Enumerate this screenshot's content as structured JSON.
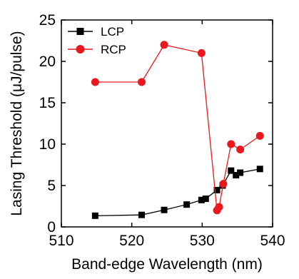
{
  "chart_data": {
    "type": "line",
    "xlabel": "Band-edge Wavelength (nm)",
    "ylabel": "Lasing Threshold (μJ/pulse)",
    "xlim": [
      510,
      540
    ],
    "ylim": [
      0,
      25
    ],
    "xticks": [
      510,
      520,
      530,
      540
    ],
    "yticks": [
      0,
      5,
      10,
      15,
      20,
      25
    ],
    "grid": false,
    "legend_position": "top-left",
    "series": [
      {
        "name": "LCP",
        "marker": "square",
        "color": "#000000",
        "x": [
          514.8,
          521.4,
          524.6,
          527.8,
          529.9,
          530.5,
          532.1,
          532.9,
          534.1,
          534.8,
          535.4,
          538.2
        ],
        "y": [
          1.35,
          1.45,
          2.05,
          2.7,
          3.25,
          3.4,
          4.45,
          5.0,
          6.8,
          6.25,
          6.55,
          7.0
        ]
      },
      {
        "name": "RCP",
        "marker": "circle",
        "color": "#e8181c",
        "x": [
          514.8,
          521.4,
          524.6,
          529.9,
          532.1,
          532.4,
          533.0,
          534.1,
          535.4,
          538.2
        ],
        "y": [
          17.5,
          17.5,
          22.0,
          21.0,
          2.0,
          2.4,
          5.2,
          10.0,
          9.35,
          11.0
        ]
      }
    ]
  }
}
